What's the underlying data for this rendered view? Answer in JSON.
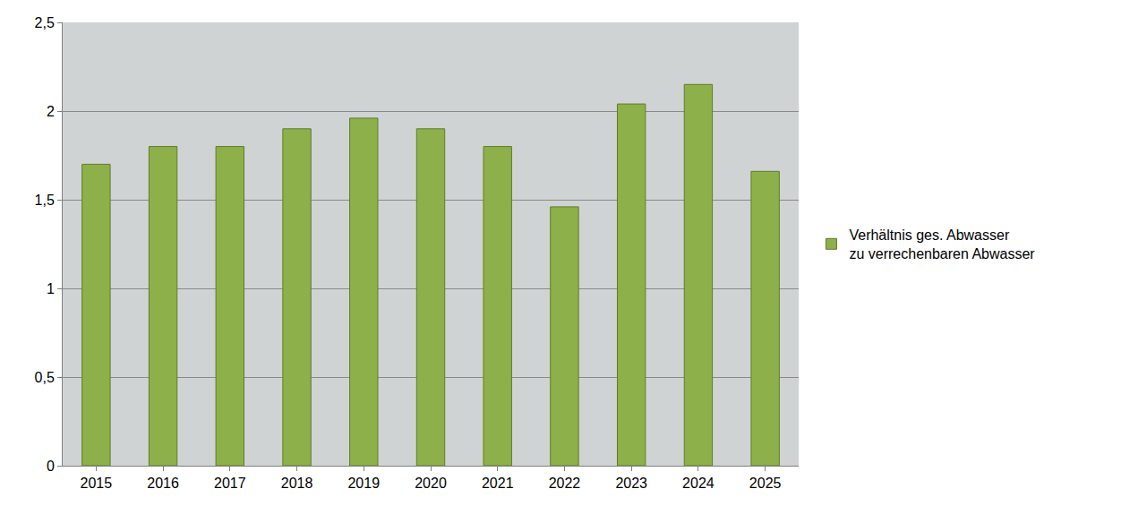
{
  "chart_data": {
    "type": "bar",
    "categories": [
      "2015",
      "2016",
      "2017",
      "2018",
      "2019",
      "2020",
      "2021",
      "2022",
      "2023",
      "2024",
      "2025"
    ],
    "series": [
      {
        "name": "Verhältnis ges. Abwasser zu verrechenbaren Abwasser",
        "color": "#8db04a",
        "values": [
          1.7,
          1.8,
          1.8,
          1.9,
          1.96,
          1.9,
          1.8,
          1.46,
          2.04,
          2.15,
          1.66
        ]
      }
    ],
    "ylim": [
      0,
      2.5
    ],
    "yticks": [
      0,
      {
        "value": 0.5,
        "label": "0,5"
      },
      1,
      {
        "value": 1.5,
        "label": "1,5"
      },
      2,
      {
        "value": 2.5,
        "label": "2,5"
      }
    ],
    "grid": true,
    "legend": "right"
  }
}
